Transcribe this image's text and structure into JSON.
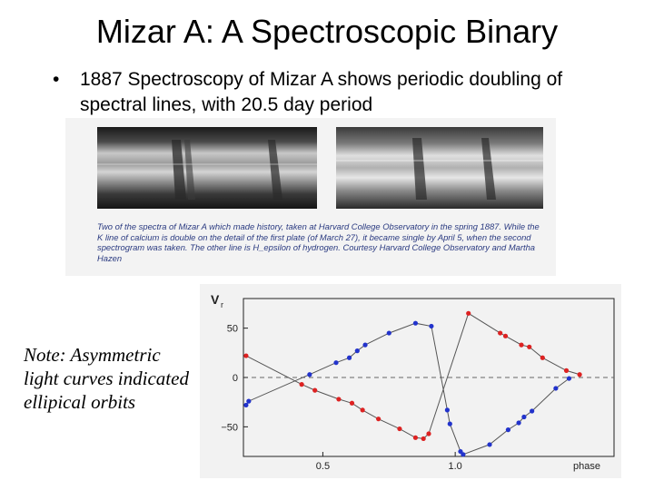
{
  "slide": {
    "title": "Mizar A: A Spectroscopic Binary",
    "bullet": "1887 Spectroscopy of Mizar A shows periodic doubling of spectral lines, with 20.5 day period",
    "note": "Note: Asymmetric light curves indicated ellipical orbits"
  },
  "spectra": {
    "caption": "Two of the spectra of Mizar A which made history, taken at Harvard College Observatory in the spring 1887. While the K line of calcium is double on the detail of the first plate (of March 27), it became single by April 5, when the second spectrogram was taken. The other line is H_epsilon of hydrogen. Courtesy Harvard College Observatory and Martha Hazen"
  },
  "chart_data": {
    "type": "scatter",
    "title": "",
    "ylabel": "V",
    "ylabel_subscript": "r",
    "xlabel": "phase",
    "xlim": [
      0.2,
      1.6
    ],
    "ylim": [
      -80,
      80
    ],
    "x_ticks": [
      "0.5",
      "1.0",
      "phase"
    ],
    "y_ticks": [
      "50",
      "0",
      "−50"
    ],
    "zero_line": "dashed",
    "series": [
      {
        "color": "#2233cc",
        "points": [
          [
            0.21,
            -28
          ],
          [
            0.22,
            -24
          ],
          [
            0.45,
            3
          ],
          [
            0.55,
            15
          ],
          [
            0.6,
            20
          ],
          [
            0.63,
            27
          ],
          [
            0.66,
            33
          ],
          [
            0.75,
            45
          ],
          [
            0.85,
            55
          ],
          [
            0.91,
            52
          ],
          [
            0.97,
            -33
          ],
          [
            0.98,
            -47
          ],
          [
            1.02,
            -75
          ],
          [
            1.03,
            -78
          ],
          [
            1.13,
            -68
          ],
          [
            1.2,
            -53
          ],
          [
            1.24,
            -46
          ],
          [
            1.26,
            -40
          ],
          [
            1.29,
            -34
          ],
          [
            1.38,
            -11
          ],
          [
            1.43,
            -1
          ]
        ]
      },
      {
        "color": "#dd2222",
        "points": [
          [
            0.21,
            22
          ],
          [
            0.42,
            -7
          ],
          [
            0.47,
            -13
          ],
          [
            0.56,
            -22
          ],
          [
            0.61,
            -26
          ],
          [
            0.65,
            -33
          ],
          [
            0.71,
            -42
          ],
          [
            0.79,
            -52
          ],
          [
            0.85,
            -61
          ],
          [
            0.88,
            -62
          ],
          [
            0.9,
            -57
          ],
          [
            1.05,
            65
          ],
          [
            1.17,
            45
          ],
          [
            1.19,
            42
          ],
          [
            1.25,
            33
          ],
          [
            1.28,
            31
          ],
          [
            1.33,
            20
          ],
          [
            1.42,
            7
          ],
          [
            1.47,
            3
          ]
        ]
      }
    ]
  }
}
